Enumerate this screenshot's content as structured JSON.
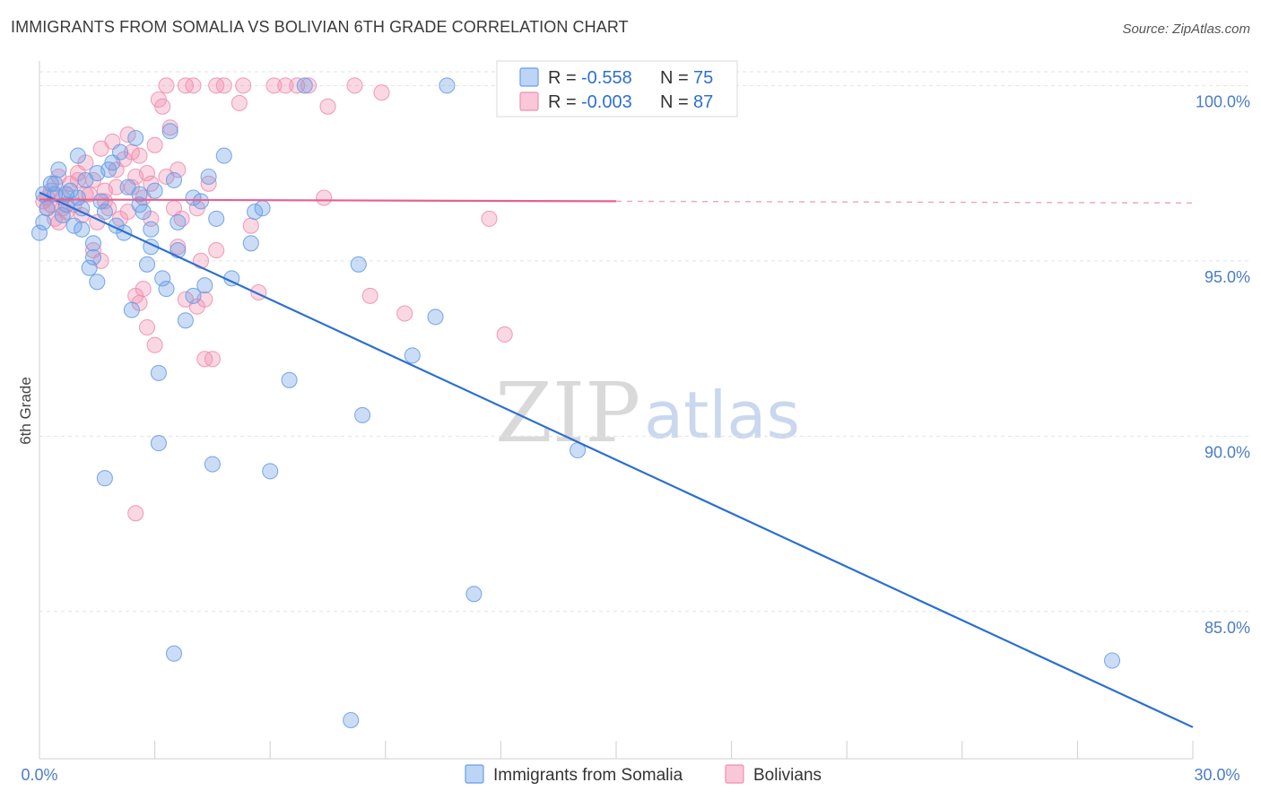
{
  "header": {
    "title": "IMMIGRANTS FROM SOMALIA VS BOLIVIAN 6TH GRADE CORRELATION CHART",
    "source": "Source: ZipAtlas.com"
  },
  "colors": {
    "somalia": "#6a9ee6",
    "somalia_line": "#2a6fd1",
    "bolivia": "#f08fb0",
    "bolivia_line": "#e8608e",
    "axis_text": "#4a7cc7",
    "grid": "#e2e2e2"
  },
  "legend": {
    "r_label": "R =",
    "n_label": "N =",
    "somalia_r": "-0.558",
    "somalia_n": "75",
    "bolivia_r": "-0.003",
    "bolivia_n": "87"
  },
  "watermark": {
    "zip": "ZIP",
    "atlas": "atlas"
  },
  "chart_data": {
    "type": "scatter",
    "title": "IMMIGRANTS FROM SOMALIA VS BOLIVIAN 6TH GRADE CORRELATION CHART",
    "xlabel": "",
    "ylabel": "6th Grade",
    "xlim": [
      0,
      30
    ],
    "ylim": [
      80.8,
      100.7
    ],
    "x_tick_labels": [
      "0.0%",
      "30.0%"
    ],
    "y_ticks": [
      85,
      90,
      95,
      100
    ],
    "y_tick_labels": [
      "85.0%",
      "90.0%",
      "95.0%",
      "100.0%"
    ],
    "legend_position": "top-center",
    "series": [
      {
        "name": "Immigrants from Somalia",
        "r": -0.558,
        "n": 75,
        "trendline": {
          "x": [
            0.0,
            30.0
          ],
          "y": [
            96.95,
            81.7
          ]
        },
        "points": [
          [
            0.1,
            96.9
          ],
          [
            0.2,
            96.5
          ],
          [
            0.3,
            97.2
          ],
          [
            0.4,
            96.9
          ],
          [
            0.5,
            97.6
          ],
          [
            0.6,
            96.3
          ],
          [
            0.7,
            96.9
          ],
          [
            0.9,
            96.0
          ],
          [
            0.8,
            97.0
          ],
          [
            1.0,
            96.8
          ],
          [
            0.7,
            96.6
          ],
          [
            1.0,
            98.0
          ],
          [
            1.1,
            95.9
          ],
          [
            1.2,
            97.3
          ],
          [
            1.3,
            94.8
          ],
          [
            1.4,
            95.5
          ],
          [
            1.5,
            97.5
          ],
          [
            1.6,
            96.7
          ],
          [
            1.7,
            96.4
          ],
          [
            1.8,
            97.6
          ],
          [
            1.9,
            97.8
          ],
          [
            2.0,
            96.0
          ],
          [
            2.1,
            98.1
          ],
          [
            2.2,
            95.8
          ],
          [
            2.3,
            97.1
          ],
          [
            2.5,
            98.5
          ],
          [
            2.6,
            96.9
          ],
          [
            2.7,
            96.4
          ],
          [
            2.9,
            95.9
          ],
          [
            3.0,
            97.0
          ],
          [
            3.2,
            94.5
          ],
          [
            3.4,
            98.7
          ],
          [
            3.5,
            97.3
          ],
          [
            3.6,
            96.1
          ],
          [
            3.8,
            93.3
          ],
          [
            4.0,
            96.8
          ],
          [
            4.2,
            96.7
          ],
          [
            4.4,
            97.4
          ],
          [
            4.6,
            96.2
          ],
          [
            4.8,
            98.0
          ],
          [
            5.0,
            94.5
          ],
          [
            5.5,
            95.5
          ],
          [
            5.8,
            96.5
          ],
          [
            2.4,
            93.6
          ],
          [
            2.8,
            94.9
          ],
          [
            3.3,
            94.2
          ],
          [
            3.6,
            95.3
          ],
          [
            4.0,
            94.0
          ],
          [
            4.3,
            94.3
          ],
          [
            5.6,
            96.4
          ],
          [
            3.1,
            91.8
          ],
          [
            3.1,
            89.8
          ],
          [
            1.7,
            88.8
          ],
          [
            4.5,
            89.2
          ],
          [
            6.0,
            89.0
          ],
          [
            6.5,
            91.6
          ],
          [
            8.4,
            90.6
          ],
          [
            9.7,
            92.3
          ],
          [
            10.3,
            93.4
          ],
          [
            10.6,
            100.0
          ],
          [
            6.9,
            100.0
          ],
          [
            8.3,
            94.9
          ],
          [
            14.0,
            89.6
          ],
          [
            11.3,
            85.5
          ],
          [
            3.5,
            83.8
          ],
          [
            8.1,
            81.9
          ],
          [
            27.9,
            83.6
          ],
          [
            0.0,
            95.8
          ],
          [
            0.1,
            96.1
          ],
          [
            1.4,
            95.1
          ],
          [
            2.6,
            96.6
          ],
          [
            2.9,
            95.4
          ],
          [
            1.1,
            96.5
          ],
          [
            1.5,
            94.4
          ],
          [
            0.4,
            97.2
          ]
        ]
      },
      {
        "name": "Bolivians",
        "r": -0.003,
        "n": 87,
        "trendline": {
          "x": [
            0.0,
            15.0
          ],
          "y": [
            96.75,
            96.7
          ],
          "x_dashed": [
            15.0,
            30.0
          ],
          "y_dashed": [
            96.7,
            96.65
          ]
        },
        "points": [
          [
            0.1,
            96.7
          ],
          [
            0.2,
            96.5
          ],
          [
            0.3,
            97.0
          ],
          [
            0.4,
            96.2
          ],
          [
            0.5,
            97.4
          ],
          [
            0.6,
            96.8
          ],
          [
            0.7,
            96.4
          ],
          [
            0.8,
            97.2
          ],
          [
            0.9,
            96.6
          ],
          [
            1.0,
            97.5
          ],
          [
            1.1,
            96.3
          ],
          [
            1.2,
            97.8
          ],
          [
            1.3,
            96.9
          ],
          [
            1.4,
            97.3
          ],
          [
            1.5,
            96.1
          ],
          [
            1.6,
            98.2
          ],
          [
            1.7,
            97.0
          ],
          [
            1.8,
            96.5
          ],
          [
            1.9,
            98.4
          ],
          [
            2.0,
            97.6
          ],
          [
            2.1,
            96.2
          ],
          [
            2.2,
            97.9
          ],
          [
            2.3,
            98.6
          ],
          [
            2.4,
            97.1
          ],
          [
            2.5,
            97.4
          ],
          [
            2.6,
            98.0
          ],
          [
            2.7,
            96.8
          ],
          [
            2.8,
            97.5
          ],
          [
            2.9,
            97.2
          ],
          [
            3.0,
            98.3
          ],
          [
            3.1,
            99.6
          ],
          [
            3.2,
            99.4
          ],
          [
            3.3,
            100.0
          ],
          [
            3.4,
            98.8
          ],
          [
            3.5,
            96.5
          ],
          [
            3.6,
            97.6
          ],
          [
            3.7,
            96.2
          ],
          [
            3.8,
            100.0
          ],
          [
            4.0,
            100.0
          ],
          [
            4.1,
            96.5
          ],
          [
            4.2,
            95.0
          ],
          [
            4.4,
            97.2
          ],
          [
            4.6,
            100.0
          ],
          [
            4.8,
            100.0
          ],
          [
            5.2,
            99.5
          ],
          [
            5.3,
            100.0
          ],
          [
            5.5,
            96.0
          ],
          [
            5.7,
            94.1
          ],
          [
            6.1,
            100.0
          ],
          [
            6.4,
            100.0
          ],
          [
            6.7,
            100.0
          ],
          [
            7.0,
            100.0
          ],
          [
            7.4,
            96.8
          ],
          [
            7.5,
            99.4
          ],
          [
            8.2,
            100.0
          ],
          [
            8.6,
            94.0
          ],
          [
            8.9,
            99.8
          ],
          [
            9.5,
            93.5
          ],
          [
            11.7,
            96.2
          ],
          [
            12.1,
            92.9
          ],
          [
            2.5,
            94.0
          ],
          [
            2.6,
            93.8
          ],
          [
            2.7,
            94.2
          ],
          [
            2.8,
            93.1
          ],
          [
            3.0,
            92.6
          ],
          [
            3.6,
            95.4
          ],
          [
            3.8,
            93.9
          ],
          [
            4.1,
            93.7
          ],
          [
            4.3,
            92.2
          ],
          [
            4.5,
            92.2
          ],
          [
            4.3,
            93.9
          ],
          [
            4.6,
            95.3
          ],
          [
            2.5,
            87.8
          ],
          [
            1.4,
            95.3
          ],
          [
            1.6,
            95.0
          ],
          [
            0.3,
            96.6
          ],
          [
            0.6,
            96.5
          ],
          [
            1.0,
            97.3
          ],
          [
            1.2,
            96.9
          ],
          [
            2.0,
            97.1
          ],
          [
            2.3,
            96.4
          ],
          [
            2.9,
            96.2
          ],
          [
            3.3,
            97.4
          ],
          [
            0.2,
            96.8
          ],
          [
            0.5,
            96.1
          ],
          [
            1.7,
            96.7
          ],
          [
            2.4,
            98.1
          ]
        ]
      }
    ]
  },
  "bottom_legend": {
    "somalia_label": "Immigrants from Somalia",
    "bolivia_label": "Bolivians"
  }
}
